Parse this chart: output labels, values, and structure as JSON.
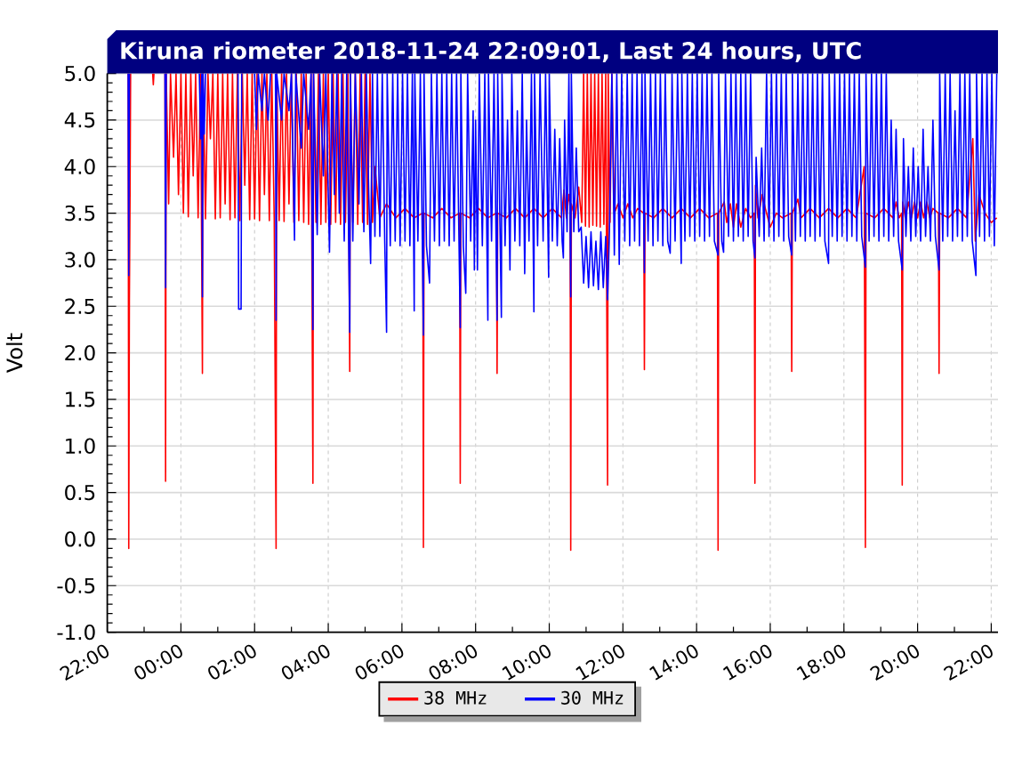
{
  "chart_data": {
    "type": "line",
    "title": "Kiruna riometer 2018-11-24 22:09:01, Last 24 hours, UTC",
    "ylabel": "Volt",
    "xlim": [
      "2018-11-23T22:00",
      "2018-11-24T22:11"
    ],
    "xticks": [
      {
        "value": "2018-11-23T22:00",
        "label": "22:00"
      },
      {
        "value": "2018-11-24T00:00",
        "label": "00:00"
      },
      {
        "value": "2018-11-24T02:00",
        "label": "02:00"
      },
      {
        "value": "2018-11-24T04:00",
        "label": "04:00"
      },
      {
        "value": "2018-11-24T06:00",
        "label": "06:00"
      },
      {
        "value": "2018-11-24T08:00",
        "label": "08:00"
      },
      {
        "value": "2018-11-24T10:00",
        "label": "10:00"
      },
      {
        "value": "2018-11-24T12:00",
        "label": "12:00"
      },
      {
        "value": "2018-11-24T14:00",
        "label": "14:00"
      },
      {
        "value": "2018-11-24T16:00",
        "label": "16:00"
      },
      {
        "value": "2018-11-24T18:00",
        "label": "18:00"
      },
      {
        "value": "2018-11-24T20:00",
        "label": "20:00"
      },
      {
        "value": "2018-11-24T22:00",
        "label": "22:00"
      }
    ],
    "ylim": [
      -1,
      5
    ],
    "yticks": [
      {
        "value": -1,
        "label": "-1.0"
      },
      {
        "value": -0.5,
        "label": "-0.5"
      },
      {
        "value": 0,
        "label": "0.0"
      },
      {
        "value": 0.5,
        "label": "0.5"
      },
      {
        "value": 1,
        "label": "1.0"
      },
      {
        "value": 1.5,
        "label": "1.5"
      },
      {
        "value": 2,
        "label": "2.0"
      },
      {
        "value": 2.5,
        "label": "2.5"
      },
      {
        "value": 3,
        "label": "3.0"
      },
      {
        "value": 3.5,
        "label": "3.5"
      },
      {
        "value": 4,
        "label": "4.0"
      },
      {
        "value": 4.5,
        "label": "4.5"
      },
      {
        "value": 5,
        "label": "5.0"
      }
    ],
    "grid": true,
    "legend": "bottom",
    "series": [
      {
        "name": "38 MHz",
        "color": "#ff0000",
        "x": [
          "2018-11-23T22:34",
          "2018-11-23T22:35",
          "2018-11-23T22:36",
          "2018-11-23T22:37",
          "2018-11-23T22:38",
          "2018-11-23T22:50",
          "2018-11-23T23:14",
          "2018-11-23T23:15",
          "2018-11-23T23:16",
          "2018-11-23T23:25",
          "2018-11-23T23:34",
          "2018-11-23T23:35",
          "2018-11-23T23:36",
          "2018-11-23T23:40",
          "2018-11-23T23:43",
          "2018-11-23T23:48",
          "2018-11-23T23:52",
          "2018-11-23T23:56",
          "2018-11-24T00:00",
          "2018-11-24T00:04",
          "2018-11-24T00:08",
          "2018-11-24T00:12",
          "2018-11-24T00:16",
          "2018-11-24T00:20",
          "2018-11-24T00:24",
          "2018-11-24T00:28",
          "2018-11-24T00:32",
          "2018-11-24T00:35",
          "2018-11-24T00:36",
          "2018-11-24T00:40",
          "2018-11-24T00:44",
          "2018-11-24T00:48",
          "2018-11-24T00:52",
          "2018-11-24T00:56",
          "2018-11-24T01:00",
          "2018-11-24T01:04",
          "2018-11-24T01:08",
          "2018-11-24T01:12",
          "2018-11-24T01:16",
          "2018-11-24T01:20",
          "2018-11-24T01:24",
          "2018-11-24T01:28",
          "2018-11-24T01:32",
          "2018-11-24T01:36",
          "2018-11-24T01:40",
          "2018-11-24T01:44",
          "2018-11-24T01:48",
          "2018-11-24T01:52",
          "2018-11-24T01:56",
          "2018-11-24T02:00",
          "2018-11-24T02:04",
          "2018-11-24T02:08",
          "2018-11-24T02:12",
          "2018-11-24T02:16",
          "2018-11-24T02:20",
          "2018-11-24T02:24",
          "2018-11-24T02:28",
          "2018-11-24T02:32",
          "2018-11-24T02:35",
          "2018-11-24T02:36",
          "2018-11-24T02:40",
          "2018-11-24T02:44",
          "2018-11-24T02:48",
          "2018-11-24T02:52",
          "2018-11-24T02:56",
          "2018-11-24T03:00",
          "2018-11-24T03:04",
          "2018-11-24T03:08",
          "2018-11-24T03:12",
          "2018-11-24T03:16",
          "2018-11-24T03:20",
          "2018-11-24T03:24",
          "2018-11-24T03:28",
          "2018-11-24T03:32",
          "2018-11-24T03:35",
          "2018-11-24T03:36",
          "2018-11-24T03:40",
          "2018-11-24T03:44",
          "2018-11-24T03:48",
          "2018-11-24T03:52",
          "2018-11-24T03:56",
          "2018-11-24T04:00",
          "2018-11-24T04:04",
          "2018-11-24T04:08",
          "2018-11-24T04:12",
          "2018-11-24T04:16",
          "2018-11-24T04:20",
          "2018-11-24T04:24",
          "2018-11-24T04:28",
          "2018-11-24T04:32",
          "2018-11-24T04:35",
          "2018-11-24T04:36",
          "2018-11-24T04:40",
          "2018-11-24T04:44",
          "2018-11-24T04:48",
          "2018-11-24T04:52",
          "2018-11-24T04:56",
          "2018-11-24T05:00",
          "2018-11-24T05:04",
          "2018-11-24T05:08",
          "2018-11-24T05:12",
          "2018-11-24T05:16",
          "2018-11-24T05:24",
          "2018-11-24T05:35",
          "2018-11-24T05:50",
          "2018-11-24T06:05",
          "2018-11-24T06:20",
          "2018-11-24T06:34",
          "2018-11-24T06:35",
          "2018-11-24T06:36",
          "2018-11-24T06:50",
          "2018-11-24T07:05",
          "2018-11-24T07:20",
          "2018-11-24T07:34",
          "2018-11-24T07:35",
          "2018-11-24T07:36",
          "2018-11-24T07:50",
          "2018-11-24T08:05",
          "2018-11-24T08:20",
          "2018-11-24T08:34",
          "2018-11-24T08:35",
          "2018-11-24T08:36",
          "2018-11-24T08:50",
          "2018-11-24T09:05",
          "2018-11-24T09:20",
          "2018-11-24T09:35",
          "2018-11-24T09:50",
          "2018-11-24T10:05",
          "2018-11-24T10:20",
          "2018-11-24T10:24",
          "2018-11-24T10:28",
          "2018-11-24T10:32",
          "2018-11-24T10:34",
          "2018-11-24T10:35",
          "2018-11-24T10:36",
          "2018-11-24T10:42",
          "2018-11-24T10:48",
          "2018-11-24T10:53",
          "2018-11-24T10:56",
          "2018-11-24T10:59",
          "2018-11-24T11:02",
          "2018-11-24T11:05",
          "2018-11-24T11:08",
          "2018-11-24T11:11",
          "2018-11-24T11:14",
          "2018-11-24T11:17",
          "2018-11-24T11:20",
          "2018-11-24T11:23",
          "2018-11-24T11:26",
          "2018-11-24T11:29",
          "2018-11-24T11:32",
          "2018-11-24T11:35",
          "2018-11-24T11:36",
          "2018-11-24T11:39",
          "2018-11-24T11:42",
          "2018-11-24T11:46",
          "2018-11-24T11:52",
          "2018-11-24T12:00",
          "2018-11-24T12:08",
          "2018-11-24T12:16",
          "2018-11-24T12:24",
          "2018-11-24T12:34",
          "2018-11-24T12:35",
          "2018-11-24T12:36",
          "2018-11-24T12:50",
          "2018-11-24T13:05",
          "2018-11-24T13:20",
          "2018-11-24T13:35",
          "2018-11-24T13:50",
          "2018-11-24T14:05",
          "2018-11-24T14:20",
          "2018-11-24T14:34",
          "2018-11-24T14:35",
          "2018-11-24T14:36",
          "2018-11-24T14:45",
          "2018-11-24T14:49",
          "2018-11-24T14:55",
          "2018-11-24T15:00",
          "2018-11-24T15:05",
          "2018-11-24T15:12",
          "2018-11-24T15:20",
          "2018-11-24T15:28",
          "2018-11-24T15:34",
          "2018-11-24T15:35",
          "2018-11-24T15:36",
          "2018-11-24T15:40",
          "2018-11-24T15:47",
          "2018-11-24T15:52",
          "2018-11-24T15:56",
          "2018-11-24T16:00",
          "2018-11-24T16:10",
          "2018-11-24T16:20",
          "2018-11-24T16:34",
          "2018-11-24T16:35",
          "2018-11-24T16:36",
          "2018-11-24T16:45",
          "2018-11-24T16:50",
          "2018-11-24T17:05",
          "2018-11-24T17:20",
          "2018-11-24T17:35",
          "2018-11-24T17:50",
          "2018-11-24T18:05",
          "2018-11-24T18:20",
          "2018-11-24T18:33",
          "2018-11-24T18:35",
          "2018-11-24T18:36",
          "2018-11-24T18:50",
          "2018-11-24T19:05",
          "2018-11-24T19:20",
          "2018-11-24T19:25",
          "2018-11-24T19:30",
          "2018-11-24T19:34",
          "2018-11-24T19:35",
          "2018-11-24T19:36",
          "2018-11-24T19:40",
          "2018-11-24T19:45",
          "2018-11-24T19:50",
          "2018-11-24T19:55",
          "2018-11-24T20:00",
          "2018-11-24T20:05",
          "2018-11-24T20:10",
          "2018-11-24T20:15",
          "2018-11-24T20:20",
          "2018-11-24T20:25",
          "2018-11-24T20:34",
          "2018-11-24T20:35",
          "2018-11-24T20:36",
          "2018-11-24T20:50",
          "2018-11-24T21:05",
          "2018-11-24T21:20",
          "2018-11-24T21:30",
          "2018-11-24T21:34",
          "2018-11-24T21:40",
          "2018-11-24T21:50",
          "2018-11-24T22:00",
          "2018-11-24T22:09"
        ],
        "values": [
          5.0,
          -0.1,
          2.55,
          3.6,
          5.0,
          null,
          5.0,
          4.88,
          5.0,
          null,
          5.0,
          0.62,
          5.0,
          3.6,
          5.0,
          4.1,
          5.0,
          3.7,
          5.0,
          3.5,
          5.0,
          3.46,
          5.0,
          3.9,
          5.0,
          3.45,
          5.0,
          1.78,
          5.0,
          3.44,
          5.0,
          4.3,
          5.0,
          3.44,
          5.0,
          3.45,
          5.0,
          3.6,
          5.0,
          3.43,
          5.0,
          3.45,
          5.0,
          3.42,
          5.0,
          3.8,
          5.0,
          3.43,
          5.0,
          3.44,
          5.0,
          3.42,
          5.0,
          3.7,
          5.0,
          3.42,
          5.0,
          3.43,
          -0.1,
          5.0,
          3.42,
          5.0,
          3.41,
          5.0,
          3.6,
          5.0,
          3.4,
          5.0,
          3.42,
          5.0,
          3.4,
          5.0,
          3.38,
          5.0,
          0.6,
          5.0,
          3.4,
          5.0,
          3.38,
          5.0,
          3.4,
          5.0,
          3.38,
          5.0,
          3.4,
          5.0,
          3.38,
          5.0,
          3.4,
          5.0,
          1.8,
          5.0,
          3.4,
          5.0,
          3.38,
          5.0,
          3.4,
          5.0,
          3.38,
          5.0,
          3.4,
          4.0,
          3.45,
          3.6,
          3.45,
          3.55,
          3.45,
          3.5,
          -0.09,
          3.5,
          3.45,
          3.55,
          3.45,
          3.5,
          0.6,
          3.5,
          3.45,
          3.55,
          3.45,
          3.5,
          1.78,
          3.5,
          3.45,
          3.55,
          3.45,
          3.55,
          3.45,
          3.55,
          3.45,
          3.75,
          3.45,
          3.7,
          3.6,
          -0.12,
          3.6,
          3.45,
          3.78,
          3.4,
          5.0,
          3.36,
          5.0,
          3.35,
          5.0,
          3.37,
          5.0,
          3.36,
          5.0,
          3.35,
          5.0,
          3.38,
          5.0,
          0.58,
          5.0,
          3.4,
          5.0,
          3.5,
          3.6,
          3.45,
          3.6,
          3.45,
          3.55,
          3.5,
          1.82,
          3.5,
          3.45,
          3.55,
          3.45,
          3.55,
          3.45,
          3.55,
          3.45,
          3.5,
          -0.12,
          3.5,
          3.62,
          3.4,
          3.6,
          3.35,
          3.6,
          3.35,
          3.55,
          3.45,
          3.5,
          0.6,
          3.8,
          3.45,
          3.7,
          3.55,
          3.45,
          3.35,
          3.5,
          3.45,
          3.5,
          1.8,
          3.5,
          3.65,
          3.45,
          3.55,
          3.45,
          3.55,
          3.45,
          3.55,
          3.45,
          4.0,
          -0.09,
          3.5,
          3.45,
          3.55,
          3.45,
          3.62,
          3.45,
          3.5,
          0.58,
          3.62,
          3.45,
          3.62,
          3.45,
          3.62,
          3.45,
          3.62,
          3.45,
          3.62,
          3.45,
          3.55,
          3.5,
          1.78,
          3.5,
          3.45,
          3.55,
          3.45,
          4.3,
          3.2,
          3.7,
          3.5,
          3.4,
          3.45
        ]
      },
      {
        "name": "30 MHz",
        "color": "#0000ff",
        "x": [
          "2018-11-23T22:34",
          "2018-11-23T22:35",
          "2018-11-23T22:36",
          "2018-11-23T22:50",
          "2018-11-23T23:34",
          "2018-11-23T23:35",
          "2018-11-23T23:36",
          "2018-11-24T00:00",
          "2018-11-24T00:30",
          "2018-11-24T00:32",
          "2018-11-24T00:34",
          "2018-11-24T00:35",
          "2018-11-24T00:36",
          "2018-11-24T00:38",
          "2018-11-24T00:40",
          "2018-11-24T01:10",
          "2018-11-24T01:33",
          "2018-11-24T01:34",
          "2018-11-24T01:38",
          "2018-11-24T01:39",
          "2018-11-24T01:50",
          "2018-11-24T02:00",
          "2018-11-24T02:03",
          "2018-11-24T02:06",
          "2018-11-24T02:12",
          "2018-11-24T02:16",
          "2018-11-24T02:22",
          "2018-11-24T02:26",
          "2018-11-24T02:30",
          "2018-11-24T02:34",
          "2018-11-24T02:35",
          "2018-11-24T02:36",
          "2018-11-24T02:44",
          "2018-11-24T02:48",
          "2018-11-24T02:56",
          "2018-11-24T03:00",
          "2018-11-24T03:05",
          "2018-11-24T03:07",
          "2018-11-24T03:16",
          "2018-11-24T03:20",
          "2018-11-24T03:28",
          "2018-11-24T03:32",
          "2018-11-24T03:35",
          "2018-11-24T03:36",
          "2018-11-24T03:42",
          "2018-11-24T03:46",
          "2018-11-24T03:52",
          "2018-11-24T03:56",
          "2018-11-24T04:02",
          "2018-11-24T04:06",
          "2018-11-24T04:10",
          "2018-11-24T04:14",
          "2018-11-24T04:18",
          "2018-11-24T04:22",
          "2018-11-24T04:26",
          "2018-11-24T04:30",
          "2018-11-24T04:35",
          "2018-11-24T04:36",
          "2018-11-24T04:40",
          "2018-11-24T04:44",
          "2018-11-24T04:50",
          "2018-11-24T04:54",
          "2018-11-24T04:58",
          "2018-11-24T05:02",
          "2018-11-24T05:06",
          "2018-11-24T05:09",
          "2018-11-24T05:12",
          "2018-11-24T05:16",
          "2018-11-24T05:20",
          "2018-11-24T05:24",
          "2018-11-24T05:28",
          "2018-11-24T05:32",
          "2018-11-24T05:35",
          "2018-11-24T05:36",
          "2018-11-24T05:41",
          "2018-11-24T05:45",
          "2018-11-24T05:49",
          "2018-11-24T05:53",
          "2018-11-24T05:57",
          "2018-11-24T06:01",
          "2018-11-24T06:05",
          "2018-11-24T06:09",
          "2018-11-24T06:13",
          "2018-11-24T06:17",
          "2018-11-24T06:20",
          "2018-11-24T06:21",
          "2018-11-24T06:26",
          "2018-11-24T06:30",
          "2018-11-24T06:35",
          "2018-11-24T06:36",
          "2018-11-24T06:40",
          "2018-11-24T06:45",
          "2018-11-24T06:48",
          "2018-11-24T06:53",
          "2018-11-24T06:57",
          "2018-11-24T07:01",
          "2018-11-24T07:05",
          "2018-11-24T07:09",
          "2018-11-24T07:13",
          "2018-11-24T07:17",
          "2018-11-24T07:21",
          "2018-11-24T07:25",
          "2018-11-24T07:29",
          "2018-11-24T07:35",
          "2018-11-24T07:36",
          "2018-11-24T07:40",
          "2018-11-24T07:44",
          "2018-11-24T07:47",
          "2018-11-24T07:52",
          "2018-11-24T07:56",
          "2018-11-24T07:58",
          "2018-11-24T08:00",
          "2018-11-24T08:03",
          "2018-11-24T08:06",
          "2018-11-24T08:11",
          "2018-11-24T08:15",
          "2018-11-24T08:20",
          "2018-11-24T08:21",
          "2018-11-24T08:26",
          "2018-11-24T08:30",
          "2018-11-24T08:35",
          "2018-11-24T08:36",
          "2018-11-24T08:42",
          "2018-11-24T08:43",
          "2018-11-24T08:48",
          "2018-11-24T08:52",
          "2018-11-24T08:56",
          "2018-11-24T08:59",
          "2018-11-24T09:04",
          "2018-11-24T09:08",
          "2018-11-24T09:12",
          "2018-11-24T09:16",
          "2018-11-24T09:20",
          "2018-11-24T09:23",
          "2018-11-24T09:27",
          "2018-11-24T09:31",
          "2018-11-24T09:35",
          "2018-11-24T09:36",
          "2018-11-24T09:41",
          "2018-11-24T09:45",
          "2018-11-24T09:50",
          "2018-11-24T09:54",
          "2018-11-24T09:59",
          "2018-11-24T10:00",
          "2018-11-24T10:05",
          "2018-11-24T10:09",
          "2018-11-24T10:13",
          "2018-11-24T10:17",
          "2018-11-24T10:21",
          "2018-11-24T10:23",
          "2018-11-24T10:25",
          "2018-11-24T10:29",
          "2018-11-24T10:32",
          "2018-11-24T10:35",
          "2018-11-24T10:36",
          "2018-11-24T10:40",
          "2018-11-24T10:44",
          "2018-11-24T10:48",
          "2018-11-24T10:52",
          "2018-11-24T10:56",
          "2018-11-24T11:00",
          "2018-11-24T11:04",
          "2018-11-24T11:08",
          "2018-11-24T11:12",
          "2018-11-24T11:16",
          "2018-11-24T11:20",
          "2018-11-24T11:24",
          "2018-11-24T11:28",
          "2018-11-24T11:32",
          "2018-11-24T11:35",
          "2018-11-24T11:38",
          "2018-11-24T11:42",
          "2018-11-24T11:46",
          "2018-11-24T11:50",
          "2018-11-24T11:54",
          "2018-11-24T11:58",
          "2018-11-24T12:03",
          "2018-11-24T12:07",
          "2018-11-24T12:11",
          "2018-11-24T12:15",
          "2018-11-24T12:19",
          "2018-11-24T12:23",
          "2018-11-24T12:27",
          "2018-11-24T12:31",
          "2018-11-24T12:35",
          "2018-11-24T12:36",
          "2018-11-24T12:41",
          "2018-11-24T12:45",
          "2018-11-24T12:49",
          "2018-11-24T12:53",
          "2018-11-24T12:57",
          "2018-11-24T13:01",
          "2018-11-24T13:05",
          "2018-11-24T13:09",
          "2018-11-24T13:13",
          "2018-11-24T13:17",
          "2018-11-24T13:20",
          "2018-11-24T13:25",
          "2018-11-24T13:29",
          "2018-11-24T13:35",
          "2018-11-24T13:36",
          "2018-11-24T13:41",
          "2018-11-24T13:45",
          "2018-11-24T13:49",
          "2018-11-24T13:53",
          "2018-11-24T13:57",
          "2018-11-24T14:01",
          "2018-11-24T14:05",
          "2018-11-24T14:09",
          "2018-11-24T14:13",
          "2018-11-24T14:17",
          "2018-11-24T14:21",
          "2018-11-24T14:25",
          "2018-11-24T14:29",
          "2018-11-24T14:35",
          "2018-11-24T14:36",
          "2018-11-24T14:41",
          "2018-11-24T14:44",
          "2018-11-24T14:47",
          "2018-11-24T14:52",
          "2018-11-24T14:56",
          "2018-11-24T15:00",
          "2018-11-24T15:04",
          "2018-11-24T15:08",
          "2018-11-24T15:12",
          "2018-11-24T15:16",
          "2018-11-24T15:20",
          "2018-11-24T15:24",
          "2018-11-24T15:28",
          "2018-11-24T15:32",
          "2018-11-24T15:35",
          "2018-11-24T15:37",
          "2018-11-24T15:42",
          "2018-11-24T15:46",
          "2018-11-24T15:50",
          "2018-11-24T15:54",
          "2018-11-24T15:58",
          "2018-11-24T16:02",
          "2018-11-24T16:06",
          "2018-11-24T16:10",
          "2018-11-24T16:14",
          "2018-11-24T16:18",
          "2018-11-24T16:22",
          "2018-11-24T16:26",
          "2018-11-24T16:30",
          "2018-11-24T16:35",
          "2018-11-24T16:36",
          "2018-11-24T16:41",
          "2018-11-24T16:45",
          "2018-11-24T16:49",
          "2018-11-24T16:53",
          "2018-11-24T16:57",
          "2018-11-24T17:01",
          "2018-11-24T17:05",
          "2018-11-24T17:09",
          "2018-11-24T17:13",
          "2018-11-24T17:17",
          "2018-11-24T17:21",
          "2018-11-24T17:25",
          "2018-11-24T17:29",
          "2018-11-24T17:35",
          "2018-11-24T17:36",
          "2018-11-24T17:41",
          "2018-11-24T17:45",
          "2018-11-24T17:49",
          "2018-11-24T17:53",
          "2018-11-24T17:57",
          "2018-11-24T18:01",
          "2018-11-24T18:05",
          "2018-11-24T18:09",
          "2018-11-24T18:13",
          "2018-11-24T18:17",
          "2018-11-24T18:21",
          "2018-11-24T18:25",
          "2018-11-24T18:29",
          "2018-11-24T18:35",
          "2018-11-24T18:36",
          "2018-11-24T18:41",
          "2018-11-24T18:45",
          "2018-11-24T18:49",
          "2018-11-24T18:53",
          "2018-11-24T18:57",
          "2018-11-24T19:01",
          "2018-11-24T19:05",
          "2018-11-24T19:09",
          "2018-11-24T19:13",
          "2018-11-24T19:17",
          "2018-11-24T19:21",
          "2018-11-24T19:25",
          "2018-11-24T19:29",
          "2018-11-24T19:35",
          "2018-11-24T19:37",
          "2018-11-24T19:41",
          "2018-11-24T19:45",
          "2018-11-24T19:49",
          "2018-11-24T19:53",
          "2018-11-24T19:57",
          "2018-11-24T20:01",
          "2018-11-24T20:05",
          "2018-11-24T20:09",
          "2018-11-24T20:13",
          "2018-11-24T20:17",
          "2018-11-24T20:21",
          "2018-11-24T20:25",
          "2018-11-24T20:29",
          "2018-11-24T20:35",
          "2018-11-24T20:36",
          "2018-11-24T20:41",
          "2018-11-24T20:45",
          "2018-11-24T20:49",
          "2018-11-24T20:53",
          "2018-11-24T20:57",
          "2018-11-24T21:01",
          "2018-11-24T21:05",
          "2018-11-24T21:09",
          "2018-11-24T21:13",
          "2018-11-24T21:17",
          "2018-11-24T21:21",
          "2018-11-24T21:25",
          "2018-11-24T21:29",
          "2018-11-24T21:35",
          "2018-11-24T21:36",
          "2018-11-24T21:41",
          "2018-11-24T21:45",
          "2018-11-24T21:49",
          "2018-11-24T21:53",
          "2018-11-24T21:57",
          "2018-11-24T22:01",
          "2018-11-24T22:05",
          "2018-11-24T22:09"
        ],
        "values": [
          5.0,
          2.83,
          5.0,
          null,
          5.0,
          2.7,
          5.0,
          null,
          5.0,
          4.3,
          5.0,
          2.6,
          5.0,
          4.35,
          5.0,
          null,
          5.0,
          2.47,
          2.47,
          5.0,
          null,
          5.0,
          4.4,
          5.0,
          4.6,
          5.0,
          4.5,
          5.0,
          null,
          5.0,
          2.35,
          5.0,
          4.5,
          5.0,
          4.6,
          5.0,
          3.21,
          5.0,
          4.2,
          5.0,
          4.4,
          5.0,
          2.25,
          5.0,
          3.27,
          5.0,
          3.9,
          5.0,
          3.08,
          5.0,
          3.7,
          5.0,
          3.5,
          5.0,
          3.2,
          5.0,
          2.22,
          5.0,
          3.2,
          5.0,
          3.6,
          5.0,
          3.3,
          5.0,
          3.7,
          2.96,
          5.0,
          3.25,
          5.0,
          3.25,
          5.0,
          3.2,
          2.22,
          5.0,
          3.15,
          5.0,
          3.2,
          5.0,
          3.15,
          5.0,
          3.2,
          5.0,
          3.15,
          5.0,
          2.45,
          5.0,
          3.2,
          5.0,
          2.19,
          5.0,
          3.15,
          2.75,
          5.0,
          3.2,
          5.0,
          3.15,
          5.0,
          3.2,
          5.0,
          3.15,
          5.0,
          3.2,
          5.0,
          2.27,
          5.0,
          3.15,
          2.64,
          5.0,
          3.2,
          4.6,
          2.89,
          4.5,
          2.89,
          5.0,
          3.15,
          5.0,
          2.35,
          5.0,
          3.2,
          5.0,
          2.35,
          5.0,
          2.38,
          5.0,
          3.15,
          4.5,
          2.89,
          5.0,
          3.2,
          4.6,
          3.15,
          5.0,
          2.85,
          4.5,
          3.2,
          5.0,
          2.44,
          5.0,
          3.15,
          5.0,
          3.2,
          5.0,
          2.81,
          5.0,
          3.2,
          4.4,
          3.15,
          4.3,
          3.2,
          3.02,
          4.5,
          3.3,
          5.0,
          2.6,
          5.0,
          3.3,
          4.2,
          3.3,
          3.35,
          2.75,
          3.25,
          2.7,
          3.3,
          2.72,
          3.2,
          2.68,
          3.3,
          2.7,
          3.25,
          2.57,
          3.3,
          5.0,
          3.05,
          5.0,
          2.95,
          5.0,
          3.2,
          5.0,
          3.15,
          5.0,
          3.2,
          5.0,
          3.15,
          5.0,
          2.86,
          5.0,
          3.2,
          5.0,
          3.15,
          5.0,
          3.2,
          5.0,
          3.15,
          5.0,
          3.2,
          3.07,
          5.0,
          3.2,
          5.0,
          2.96,
          5.0,
          3.2,
          5.0,
          3.25,
          5.0,
          3.2,
          5.0,
          3.25,
          5.0,
          3.2,
          5.0,
          3.25,
          5.0,
          3.2,
          3.05,
          5.0,
          3.2,
          3.08,
          5.0,
          3.25,
          5.0,
          3.2,
          5.0,
          3.25,
          5.0,
          3.2,
          5.0,
          3.25,
          5.0,
          3.2,
          3.02,
          4.1,
          3.25,
          4.2,
          3.2,
          5.0,
          3.25,
          5.0,
          3.2,
          5.0,
          3.25,
          5.0,
          3.2,
          5.0,
          3.25,
          3.05,
          5.0,
          3.2,
          5.0,
          3.25,
          5.0,
          3.2,
          5.0,
          3.25,
          5.0,
          3.2,
          5.0,
          3.25,
          5.0,
          3.2,
          2.96,
          5.0,
          3.25,
          5.0,
          3.2,
          5.0,
          3.25,
          5.0,
          3.2,
          5.0,
          3.25,
          5.0,
          3.2,
          5.0,
          3.25,
          2.92,
          5.0,
          3.2,
          5.0,
          3.25,
          5.0,
          3.2,
          5.0,
          3.25,
          5.0,
          3.2,
          4.5,
          3.25,
          4.4,
          3.2,
          2.89,
          4.3,
          3.25,
          4.0,
          3.2,
          4.2,
          3.25,
          4.0,
          3.2,
          4.4,
          3.25,
          4.0,
          3.2,
          4.5,
          3.25,
          2.89,
          5.0,
          3.2,
          5.0,
          3.25,
          5.0,
          3.2,
          4.6,
          3.25,
          5.0,
          3.2,
          5.0,
          3.25,
          5.0,
          3.2,
          2.83,
          5.0,
          3.25,
          5.0,
          3.2,
          5.0,
          3.25,
          5.0,
          3.15,
          5.0
        ]
      }
    ]
  }
}
